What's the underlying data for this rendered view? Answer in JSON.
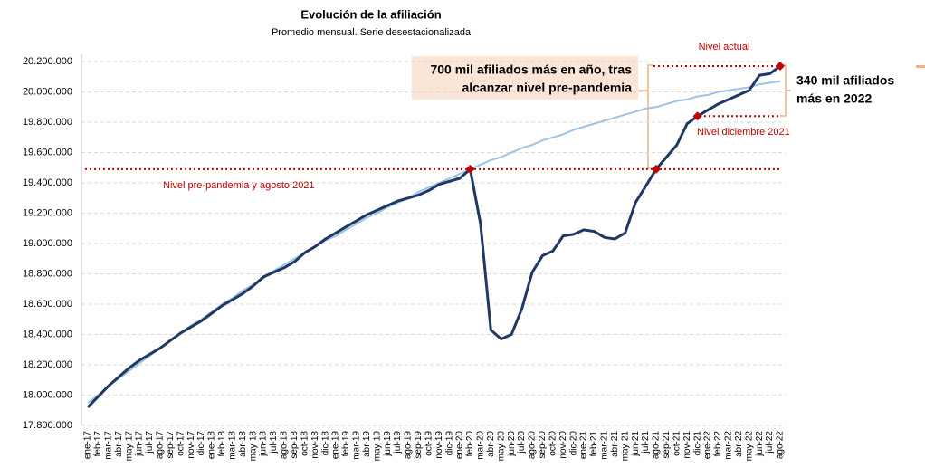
{
  "chart_data": {
    "type": "line",
    "title": "Evolución de la afiliación",
    "subtitle": "Promedio mensual. Serie desestacionalizada",
    "categories": [
      "ene-17",
      "feb-17",
      "mar-17",
      "abr-17",
      "may-17",
      "jun-17",
      "jul-17",
      "ago-17",
      "sep-17",
      "oct-17",
      "nov-17",
      "dic-17",
      "ene-18",
      "feb-18",
      "mar-18",
      "abr-18",
      "may-18",
      "jun-18",
      "jul-18",
      "ago-18",
      "sep-18",
      "oct-18",
      "nov-18",
      "dic-18",
      "ene-19",
      "feb-19",
      "mar-19",
      "abr-19",
      "may-19",
      "jun-19",
      "jul-19",
      "ago-19",
      "sep-19",
      "oct-19",
      "nov-19",
      "dic-19",
      "ene-20",
      "feb-20",
      "mar-20",
      "abr-20",
      "may-20",
      "jun-20",
      "jul-20",
      "ago-20",
      "sep-20",
      "oct-20",
      "nov-20",
      "dic-20",
      "ene-21",
      "feb-21",
      "mar-21",
      "abr-21",
      "may-21",
      "jun-21",
      "jul-21",
      "ago-21",
      "sep-21",
      "oct-21",
      "nov-21",
      "dic-21",
      "ene-22",
      "feb-22",
      "mar-22",
      "abr-22",
      "may-22",
      "jun-22",
      "jul-22",
      "ago-22"
    ],
    "series": [
      {
        "color": "#9dc3e6",
        "width": 2,
        "values": [
          17950000,
          18000000,
          18060000,
          18110000,
          18160000,
          18210000,
          18260000,
          18310000,
          18360000,
          18410000,
          18460000,
          18500000,
          18550000,
          18600000,
          18640000,
          18690000,
          18730000,
          18770000,
          18820000,
          18860000,
          18900000,
          18940000,
          18980000,
          19020000,
          19050000,
          19090000,
          19130000,
          19170000,
          19200000,
          19240000,
          19270000,
          19300000,
          19340000,
          19370000,
          19400000,
          19430000,
          19460000,
          19490000,
          19520000,
          19550000,
          19570000,
          19600000,
          19630000,
          19650000,
          19680000,
          19700000,
          19720000,
          19750000,
          19770000,
          19790000,
          19810000,
          19830000,
          19850000,
          19870000,
          19890000,
          19900000,
          19920000,
          19940000,
          19950000,
          19970000,
          19980000,
          20000000,
          20010000,
          20020000,
          20030000,
          20050000,
          20060000,
          20070000
        ]
      },
      {
        "color": "#1f3864",
        "width": 3,
        "values": [
          17920000,
          17990000,
          18060000,
          18120000,
          18180000,
          18230000,
          18270000,
          18310000,
          18360000,
          18410000,
          18450000,
          18490000,
          18540000,
          18590000,
          18630000,
          18670000,
          18720000,
          18780000,
          18810000,
          18840000,
          18880000,
          18940000,
          18980000,
          19030000,
          19070000,
          19110000,
          19150000,
          19190000,
          19220000,
          19250000,
          19280000,
          19300000,
          19320000,
          19350000,
          19390000,
          19410000,
          19430000,
          19490000,
          19130000,
          18430000,
          18370000,
          18400000,
          18570000,
          18810000,
          18920000,
          18950000,
          19050000,
          19060000,
          19090000,
          19080000,
          19040000,
          19030000,
          19070000,
          19270000,
          19380000,
          19490000,
          19570000,
          19650000,
          19790000,
          19840000,
          19880000,
          19920000,
          19950000,
          19980000,
          20010000,
          20110000,
          20120000,
          20170000
        ]
      }
    ],
    "highlighted": [
      "feb-20",
      "ago-21",
      "dic-21",
      "ago-22"
    ],
    "highlight_color": "#c00000",
    "ylim": [
      17800000,
      20200000
    ],
    "yticks": [
      {
        "value": 17800000,
        "label": "17.800.000"
      },
      {
        "value": 18000000,
        "label": "18.000.000"
      },
      {
        "value": 18200000,
        "label": "18.200.000"
      },
      {
        "value": 18400000,
        "label": "18.400.000"
      },
      {
        "value": 18600000,
        "label": "18.600.000"
      },
      {
        "value": 18800000,
        "label": "18.800.000"
      },
      {
        "value": 19000000,
        "label": "19.000.000"
      },
      {
        "value": 19200000,
        "label": "19.200.000"
      },
      {
        "value": 19400000,
        "label": "19.400.000"
      },
      {
        "value": 19600000,
        "label": "19.600.000"
      },
      {
        "value": 19800000,
        "label": "19.800.000"
      },
      {
        "value": 20000000,
        "label": "20.000.000"
      },
      {
        "value": 20200000,
        "label": "20.200.000"
      }
    ],
    "grid": true,
    "reference_lines": [
      {
        "value": 19490000,
        "label": "Nivel pre-pandemia y agosto 2021"
      },
      {
        "value": 20170000,
        "label": "Nivel actual"
      },
      {
        "value": 19840000,
        "label": "Nivel diciembre 2021"
      }
    ],
    "callouts": [
      {
        "lines": [
          "700 mil afiliados más en año, tras",
          "alcanzar nivel pre-pandemia"
        ]
      },
      {
        "lines": [
          "340  mil afiliados",
          "más en 2022"
        ]
      }
    ]
  }
}
